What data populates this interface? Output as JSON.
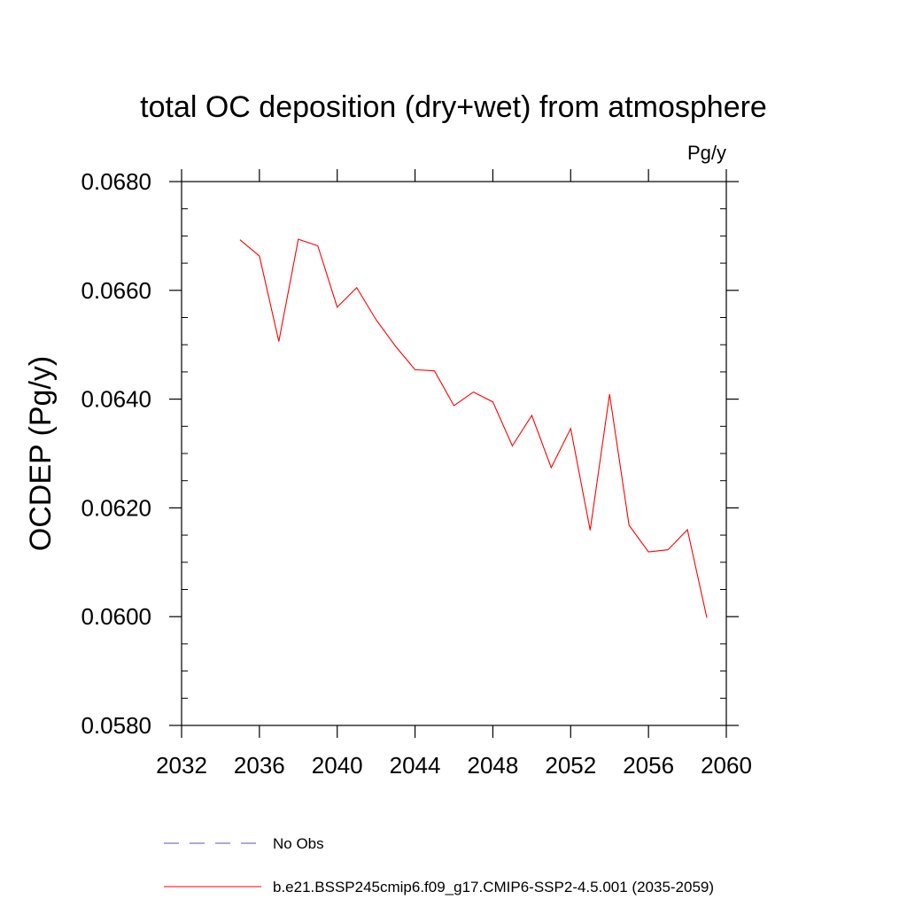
{
  "chart_data": {
    "type": "line",
    "title": "total OC deposition (dry+wet) from atmosphere",
    "units_label": "Pg/y",
    "ylabel": "OCDEP  (Pg/y)",
    "xlabel": "",
    "xlim": [
      2032,
      2060
    ],
    "ylim": [
      0.058,
      0.068
    ],
    "x_ticks": [
      2032,
      2036,
      2040,
      2044,
      2048,
      2052,
      2056,
      2060
    ],
    "x_tick_labels": [
      "2032",
      "2036",
      "2040",
      "2044",
      "2048",
      "2052",
      "2056",
      "2060"
    ],
    "y_ticks": [
      0.058,
      0.06,
      0.062,
      0.064,
      0.066,
      0.068
    ],
    "y_tick_labels": [
      "0.0580",
      "0.0600",
      "0.0620",
      "0.0640",
      "0.0660",
      "0.0680"
    ],
    "grid": false,
    "legend_position": "bottom",
    "series": [
      {
        "name": "b.e21.BSSP245cmip6.f09_g17.CMIP6-SSP2-4.5.001 (2035-2059)",
        "color": "#ff0000",
        "style": "solid",
        "x": [
          2035,
          2036,
          2037,
          2038,
          2039,
          2040,
          2041,
          2042,
          2043,
          2044,
          2045,
          2046,
          2047,
          2048,
          2049,
          2050,
          2051,
          2052,
          2053,
          2054,
          2055,
          2056,
          2057,
          2058,
          2059
        ],
        "y": [
          0.06693,
          0.06663,
          0.06506,
          0.06694,
          0.06682,
          0.06569,
          0.06605,
          0.06546,
          0.06497,
          0.06454,
          0.06452,
          0.06388,
          0.06413,
          0.06395,
          0.06314,
          0.0637,
          0.06274,
          0.06346,
          0.06159,
          0.06409,
          0.06168,
          0.06119,
          0.06123,
          0.0616,
          0.05998
        ]
      },
      {
        "name": "No Obs",
        "color": "#5555bb",
        "style": "dashed",
        "x": [],
        "y": []
      }
    ]
  }
}
